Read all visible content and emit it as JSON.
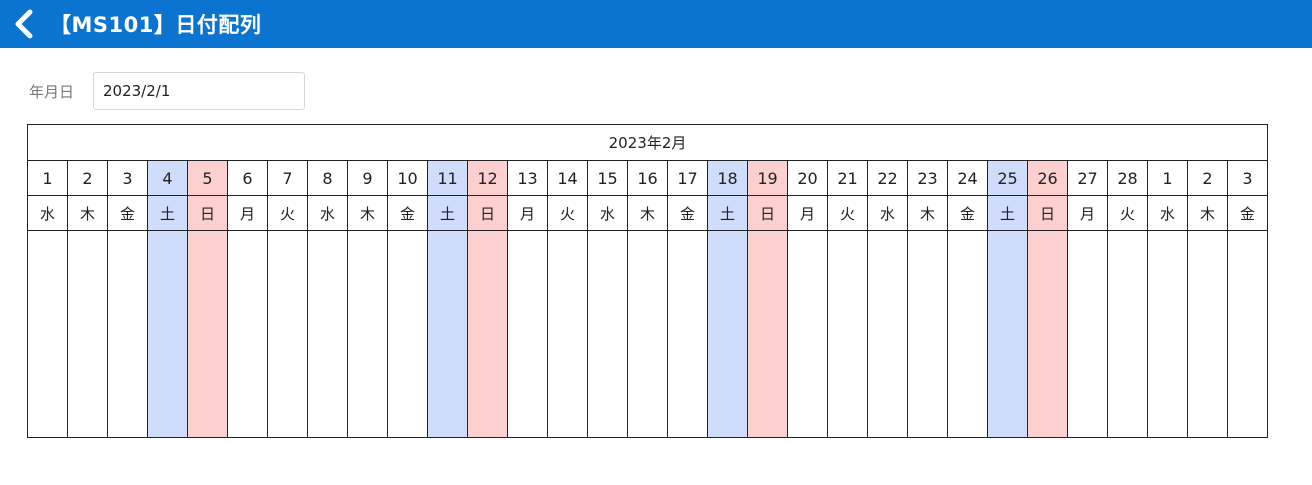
{
  "header": {
    "title": "【MS101】日付配列"
  },
  "filter": {
    "label": "年月日",
    "value": "2023/2/1"
  },
  "calendar": {
    "month_title": "2023年2月",
    "days": [
      {
        "day": "1",
        "weekday": "水",
        "type": "weekday"
      },
      {
        "day": "2",
        "weekday": "木",
        "type": "weekday"
      },
      {
        "day": "3",
        "weekday": "金",
        "type": "weekday"
      },
      {
        "day": "4",
        "weekday": "土",
        "type": "sat"
      },
      {
        "day": "5",
        "weekday": "日",
        "type": "sun"
      },
      {
        "day": "6",
        "weekday": "月",
        "type": "weekday"
      },
      {
        "day": "7",
        "weekday": "火",
        "type": "weekday"
      },
      {
        "day": "8",
        "weekday": "水",
        "type": "weekday"
      },
      {
        "day": "9",
        "weekday": "木",
        "type": "weekday"
      },
      {
        "day": "10",
        "weekday": "金",
        "type": "weekday"
      },
      {
        "day": "11",
        "weekday": "土",
        "type": "sat"
      },
      {
        "day": "12",
        "weekday": "日",
        "type": "sun"
      },
      {
        "day": "13",
        "weekday": "月",
        "type": "weekday"
      },
      {
        "day": "14",
        "weekday": "火",
        "type": "weekday"
      },
      {
        "day": "15",
        "weekday": "水",
        "type": "weekday"
      },
      {
        "day": "16",
        "weekday": "木",
        "type": "weekday"
      },
      {
        "day": "17",
        "weekday": "金",
        "type": "weekday"
      },
      {
        "day": "18",
        "weekday": "土",
        "type": "sat"
      },
      {
        "day": "19",
        "weekday": "日",
        "type": "sun"
      },
      {
        "day": "20",
        "weekday": "月",
        "type": "weekday"
      },
      {
        "day": "21",
        "weekday": "火",
        "type": "weekday"
      },
      {
        "day": "22",
        "weekday": "水",
        "type": "weekday"
      },
      {
        "day": "23",
        "weekday": "木",
        "type": "weekday"
      },
      {
        "day": "24",
        "weekday": "金",
        "type": "weekday"
      },
      {
        "day": "25",
        "weekday": "土",
        "type": "sat"
      },
      {
        "day": "26",
        "weekday": "日",
        "type": "sun"
      },
      {
        "day": "27",
        "weekday": "月",
        "type": "weekday"
      },
      {
        "day": "28",
        "weekday": "火",
        "type": "weekday"
      },
      {
        "day": "1",
        "weekday": "水",
        "type": "weekday"
      },
      {
        "day": "2",
        "weekday": "木",
        "type": "weekday"
      },
      {
        "day": "3",
        "weekday": "金",
        "type": "weekday"
      }
    ]
  },
  "icons": {
    "back": "chevron-left-icon"
  },
  "colors": {
    "header_bg": "#0b73d0",
    "saturday_bg": "#cfdcfb",
    "sunday_bg": "#fdd0d0"
  }
}
